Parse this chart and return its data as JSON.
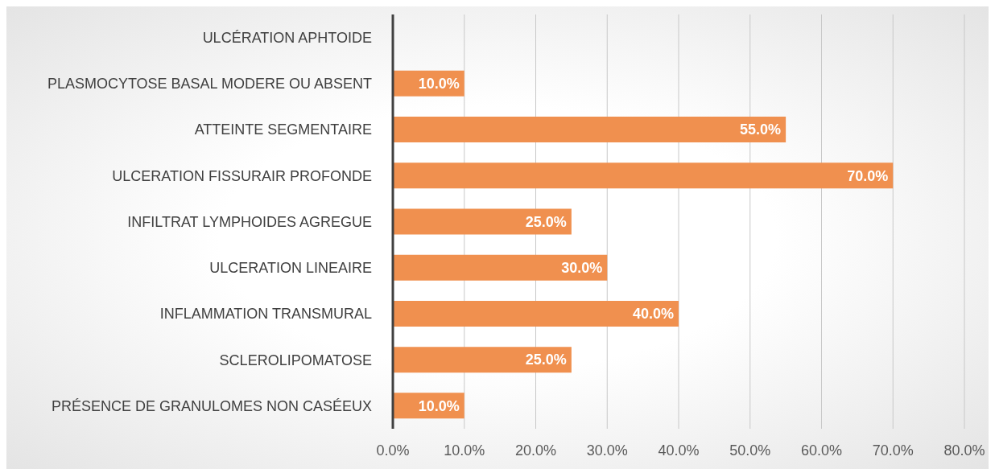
{
  "chart_data": {
    "type": "bar",
    "orientation": "horizontal",
    "categories": [
      "ULCÉRATION APHTOIDE",
      "PLASMOCYTOSE BASAL MODERE OU ABSENT",
      "ATTEINTE SEGMENTAIRE",
      "ULCERATION FISSURAIR PROFONDE",
      "INFILTRAT LYMPHOIDES AGREGUE",
      "ULCERATION LINEAIRE",
      "INFLAMMATION TRANSMURAL",
      "SCLEROLIPOMATOSE",
      "PRÉSENCE DE GRANULOMES NON CASÉEUX"
    ],
    "values": [
      null,
      10,
      55,
      70,
      25,
      30,
      40,
      25,
      10
    ],
    "value_labels": [
      null,
      "10.0%",
      "55.0%",
      "70.0%",
      "25.0%",
      "30.0%",
      "40.0%",
      "25.0%",
      "10.0%"
    ],
    "color": "#f0904f",
    "xlim": [
      0,
      80
    ],
    "xticks": [
      {
        "value": 0,
        "label": "0.0%"
      },
      {
        "value": 10,
        "label": "10.0%"
      },
      {
        "value": 20,
        "label": "20.0%"
      },
      {
        "value": 30,
        "label": "30.0%"
      },
      {
        "value": 40,
        "label": "40.0%"
      },
      {
        "value": 50,
        "label": "50.0%"
      },
      {
        "value": 60,
        "label": "60.0%"
      },
      {
        "value": 70,
        "label": "70.0%"
      },
      {
        "value": 80,
        "label": "80.0%"
      }
    ],
    "grid": "x"
  }
}
